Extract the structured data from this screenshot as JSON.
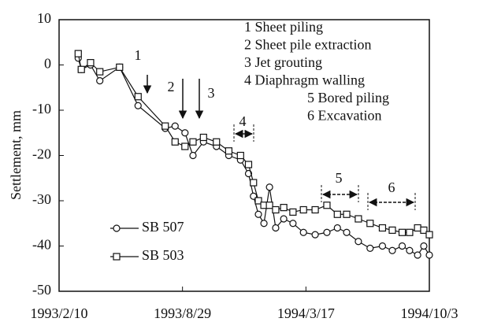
{
  "chart_data": {
    "type": "line",
    "y_label": "Settlement, mm",
    "x": [
      "1993/3/13",
      "1993/3/18",
      "1993/4/2",
      "1993/4/17",
      "1993/5/19",
      "1993/6/18",
      "1993/8/1",
      "1993/8/17",
      "1993/9/2",
      "1993/9/15",
      "1993/10/2",
      "1993/10/23",
      "1993/11/12",
      "1993/12/1",
      "1993/12/14",
      "1993/12/22",
      "1993/12/30",
      "1994/1/8",
      "1994/1/17",
      "1994/1/27",
      "1994/2/9",
      "1994/2/24",
      "1994/3/13",
      "1994/4/1",
      "1994/4/20",
      "1994/5/7",
      "1994/5/22",
      "1994/6/10",
      "1994/6/29",
      "1994/7/19",
      "1994/8/4",
      "1994/8/20",
      "1994/9/1",
      "1994/9/14",
      "1994/9/24",
      "1994/10/3"
    ],
    "series": [
      {
        "name": "SB 507",
        "color": "#111111",
        "marker": "circle",
        "values": [
          1.5,
          -1,
          0,
          -3.5,
          -0.5,
          -9,
          -14,
          -13.5,
          -15,
          -20,
          -17,
          -18,
          -20,
          -21,
          -24,
          -29,
          -33,
          -35,
          -27,
          -36,
          -34,
          -35,
          -37,
          -37.5,
          -37,
          -36,
          -37,
          -39,
          -40.5,
          -40,
          -41,
          -40,
          -41,
          -42,
          -40,
          -42
        ]
      },
      {
        "name": "SB 503",
        "color": "#111111",
        "marker": "square",
        "values": [
          2.5,
          -1,
          0.5,
          -1.5,
          -0.5,
          -7,
          -13.5,
          -17,
          -18,
          -17,
          -16,
          -17,
          -19,
          -20,
          -22,
          -26,
          -30,
          -31,
          -31,
          -32,
          -31.5,
          -32.5,
          -32,
          -32,
          -31,
          -33,
          -33,
          -34,
          -35,
          -36,
          -36.5,
          -37,
          -37,
          -36,
          -36.5,
          -37.5
        ]
      }
    ],
    "xlim": [
      "1993/2/10",
      "1994/10/3"
    ],
    "xticks": [
      "1993/2/10",
      "1993/8/29",
      "1994/3/17",
      "1994/10/3"
    ],
    "ylim": [
      -50,
      10
    ],
    "yticks": [
      10,
      0,
      -10,
      -20,
      -30,
      -40,
      -50
    ],
    "phase_markers": [
      "1",
      "2",
      "3",
      "4",
      "5",
      "6"
    ],
    "phases": [
      "1 Sheet piling",
      "2 Sheet pile extraction",
      "3 Jet grouting",
      "4 Diaphragm walling",
      "5 Bored piling",
      "6 Excavation"
    ]
  }
}
